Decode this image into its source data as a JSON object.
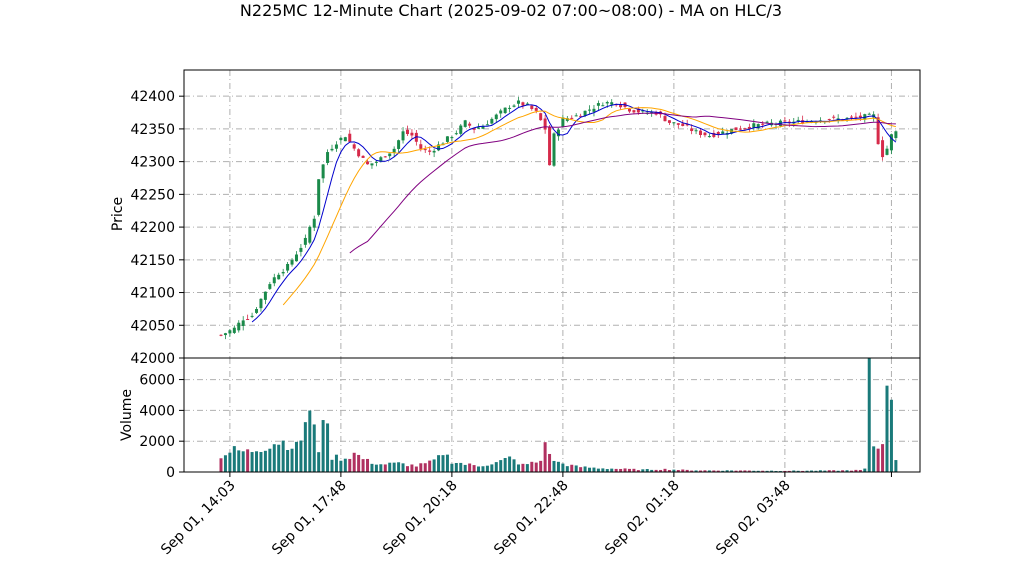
{
  "chart_data": {
    "type": "candlestick",
    "title": "N225MC 12-Minute Chart (2025-09-02 07:00~08:00) - MA on HLC/3",
    "price_panel": {
      "ylabel": "Price",
      "ylim": [
        42000,
        42440
      ],
      "yticks": [
        42000,
        42050,
        42100,
        42150,
        42200,
        42250,
        42300,
        42350,
        42400
      ],
      "grid": true
    },
    "volume_panel": {
      "ylabel": "Volume",
      "ylim": [
        0,
        7400
      ],
      "yticks": [
        0,
        2000,
        4000,
        6000
      ],
      "grid": true
    },
    "xaxis": {
      "tick_labels": [
        "Sep 01, 14:03",
        "Sep 01, 17:48",
        "Sep 01, 20:18",
        "Sep 01, 22:48",
        "Sep 02, 01:18",
        "Sep 02, 03:48"
      ],
      "tick_positions": [
        2,
        27,
        52,
        77,
        102,
        127
      ],
      "bar_count": 153
    },
    "price_anchors": [
      [
        0,
        42035
      ],
      [
        3,
        42045
      ],
      [
        5,
        42060
      ],
      [
        7,
        42065
      ],
      [
        9,
        42090
      ],
      [
        11,
        42115
      ],
      [
        13,
        42130
      ],
      [
        15,
        42140
      ],
      [
        17,
        42160
      ],
      [
        19,
        42180
      ],
      [
        20,
        42200
      ],
      [
        21,
        42215
      ],
      [
        22,
        42275
      ],
      [
        23,
        42295
      ],
      [
        24,
        42315
      ],
      [
        26,
        42330
      ],
      [
        28,
        42340
      ],
      [
        30,
        42320
      ],
      [
        33,
        42295
      ],
      [
        35,
        42300
      ],
      [
        37,
        42310
      ],
      [
        39,
        42320
      ],
      [
        41,
        42345
      ],
      [
        43,
        42340
      ],
      [
        45,
        42320
      ],
      [
        47,
        42315
      ],
      [
        49,
        42325
      ],
      [
        51,
        42335
      ],
      [
        53,
        42345
      ],
      [
        55,
        42360
      ],
      [
        57,
        42350
      ],
      [
        59,
        42355
      ],
      [
        61,
        42365
      ],
      [
        63,
        42375
      ],
      [
        65,
        42385
      ],
      [
        67,
        42390
      ],
      [
        69,
        42385
      ],
      [
        71,
        42375
      ],
      [
        73,
        42350
      ],
      [
        74,
        42295
      ],
      [
        75,
        42340
      ],
      [
        77,
        42365
      ],
      [
        80,
        42370
      ],
      [
        83,
        42380
      ],
      [
        86,
        42390
      ],
      [
        89,
        42390
      ],
      [
        92,
        42380
      ],
      [
        95,
        42375
      ],
      [
        98,
        42375
      ],
      [
        101,
        42360
      ],
      [
        104,
        42355
      ],
      [
        107,
        42345
      ],
      [
        110,
        42340
      ],
      [
        113,
        42345
      ],
      [
        116,
        42350
      ],
      [
        120,
        42355
      ],
      [
        124,
        42358
      ],
      [
        128,
        42360
      ],
      [
        132,
        42362
      ],
      [
        136,
        42365
      ],
      [
        140,
        42365
      ],
      [
        144,
        42368
      ],
      [
        147,
        42370
      ],
      [
        148,
        42330
      ],
      [
        149,
        42310
      ],
      [
        150,
        42320
      ],
      [
        151,
        42340
      ],
      [
        152,
        42345
      ]
    ],
    "volume_anchors": [
      [
        0,
        1100
      ],
      [
        3,
        1400
      ],
      [
        6,
        1300
      ],
      [
        9,
        1600
      ],
      [
        11,
        1800
      ],
      [
        13,
        2000
      ],
      [
        15,
        1900
      ],
      [
        17,
        1600
      ],
      [
        18,
        2200
      ],
      [
        19,
        3400
      ],
      [
        20,
        3700
      ],
      [
        22,
        1500
      ],
      [
        23,
        4100
      ],
      [
        25,
        1000
      ],
      [
        28,
        900
      ],
      [
        30,
        1200
      ],
      [
        33,
        700
      ],
      [
        36,
        500
      ],
      [
        40,
        550
      ],
      [
        44,
        400
      ],
      [
        47,
        600
      ],
      [
        49,
        900
      ],
      [
        50,
        1300
      ],
      [
        52,
        700
      ],
      [
        55,
        500
      ],
      [
        58,
        400
      ],
      [
        62,
        600
      ],
      [
        65,
        900
      ],
      [
        68,
        450
      ],
      [
        72,
        700
      ],
      [
        73,
        2300
      ],
      [
        74,
        1000
      ],
      [
        76,
        600
      ],
      [
        80,
        350
      ],
      [
        85,
        250
      ],
      [
        90,
        200
      ],
      [
        95,
        150
      ],
      [
        100,
        180
      ],
      [
        105,
        120
      ],
      [
        110,
        100
      ],
      [
        115,
        100
      ],
      [
        120,
        90
      ],
      [
        125,
        80
      ],
      [
        130,
        80
      ],
      [
        135,
        90
      ],
      [
        140,
        100
      ],
      [
        144,
        120
      ],
      [
        145,
        200
      ],
      [
        146,
        6200
      ],
      [
        147,
        1800
      ],
      [
        148,
        1500
      ],
      [
        149,
        2100
      ],
      [
        150,
        7000
      ],
      [
        152,
        900
      ]
    ],
    "moving_averages": [
      {
        "color": "#0000cc",
        "window": 5,
        "start": 7
      },
      {
        "color": "#ffa500",
        "window": 13,
        "start": 14
      },
      {
        "color": "#800080",
        "window": 34,
        "start": 29
      }
    ],
    "colors": {
      "up": "#1a8a4a",
      "down": "#d62a4a",
      "wick": "#555555"
    }
  }
}
